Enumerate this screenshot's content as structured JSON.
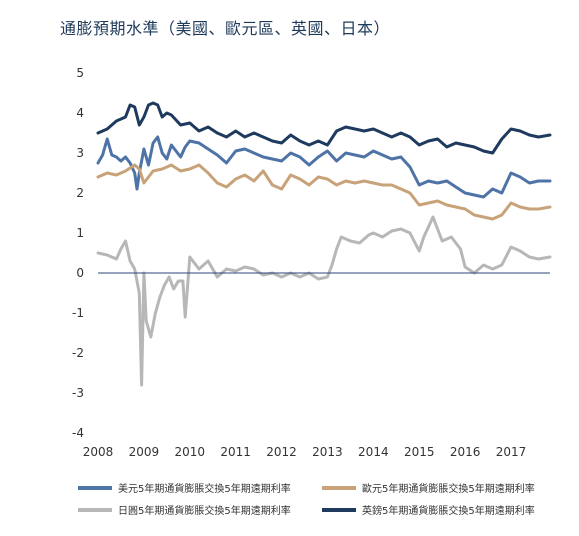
{
  "chart_data": {
    "type": "line",
    "title": "通膨預期水準（美國、歐元區、英國、日本）",
    "xlabel": "",
    "ylabel": "",
    "xlim": [
      2008.0,
      2017.85
    ],
    "ylim": [
      -4,
      5
    ],
    "grid": false,
    "legend_position": "bottom",
    "y_ticks": [
      "5",
      "4",
      "3",
      "2",
      "1",
      "0",
      "-1",
      "-2",
      "-3",
      "-4"
    ],
    "x_ticks": [
      "2008",
      "2009",
      "2010",
      "2011",
      "2012",
      "2013",
      "2014",
      "2015",
      "2016",
      "2017"
    ],
    "series": [
      {
        "name": "美元5年期通貨膨脹交換5年期遠期利率",
        "color": "#4e73a6",
        "x": [
          2008.0,
          2008.1,
          2008.2,
          2008.3,
          2008.4,
          2008.5,
          2008.6,
          2008.7,
          2008.8,
          2008.85,
          2008.9,
          2009.0,
          2009.1,
          2009.2,
          2009.3,
          2009.4,
          2009.5,
          2009.6,
          2009.7,
          2009.8,
          2009.9,
          2010.0,
          2010.2,
          2010.4,
          2010.6,
          2010.8,
          2011.0,
          2011.2,
          2011.4,
          2011.6,
          2011.8,
          2012.0,
          2012.2,
          2012.4,
          2012.6,
          2012.8,
          2013.0,
          2013.2,
          2013.4,
          2013.6,
          2013.8,
          2014.0,
          2014.2,
          2014.4,
          2014.6,
          2014.8,
          2015.0,
          2015.2,
          2015.4,
          2015.6,
          2015.8,
          2016.0,
          2016.2,
          2016.4,
          2016.6,
          2016.8,
          2017.0,
          2017.2,
          2017.4,
          2017.6,
          2017.85
        ],
        "y": [
          2.75,
          2.95,
          3.35,
          2.95,
          2.9,
          2.8,
          2.9,
          2.75,
          2.5,
          2.1,
          2.5,
          3.1,
          2.7,
          3.25,
          3.4,
          3.0,
          2.85,
          3.2,
          3.05,
          2.9,
          3.15,
          3.3,
          3.25,
          3.1,
          2.95,
          2.75,
          3.05,
          3.1,
          3.0,
          2.9,
          2.85,
          2.8,
          3.0,
          2.9,
          2.7,
          2.9,
          3.05,
          2.8,
          3.0,
          2.95,
          2.9,
          3.05,
          2.95,
          2.85,
          2.9,
          2.65,
          2.2,
          2.3,
          2.25,
          2.3,
          2.15,
          2.0,
          1.95,
          1.9,
          2.1,
          2.0,
          2.5,
          2.4,
          2.25,
          2.3,
          2.3
        ]
      },
      {
        "name": "歐元5年期通貨膨脹交換5年期遠期利率",
        "color": "#c8a278",
        "x": [
          2008.0,
          2008.2,
          2008.4,
          2008.6,
          2008.8,
          2008.9,
          2009.0,
          2009.2,
          2009.4,
          2009.6,
          2009.8,
          2010.0,
          2010.2,
          2010.4,
          2010.6,
          2010.8,
          2011.0,
          2011.2,
          2011.4,
          2011.6,
          2011.8,
          2012.0,
          2012.2,
          2012.4,
          2012.6,
          2012.8,
          2013.0,
          2013.2,
          2013.4,
          2013.6,
          2013.8,
          2014.0,
          2014.2,
          2014.4,
          2014.6,
          2014.8,
          2015.0,
          2015.2,
          2015.4,
          2015.6,
          2015.8,
          2016.0,
          2016.2,
          2016.4,
          2016.6,
          2016.8,
          2017.0,
          2017.2,
          2017.4,
          2017.6,
          2017.85
        ],
        "y": [
          2.4,
          2.5,
          2.45,
          2.55,
          2.7,
          2.6,
          2.25,
          2.55,
          2.6,
          2.7,
          2.55,
          2.6,
          2.7,
          2.5,
          2.25,
          2.15,
          2.35,
          2.45,
          2.3,
          2.55,
          2.2,
          2.1,
          2.45,
          2.35,
          2.2,
          2.4,
          2.35,
          2.2,
          2.3,
          2.25,
          2.3,
          2.25,
          2.2,
          2.2,
          2.1,
          2.0,
          1.7,
          1.75,
          1.8,
          1.7,
          1.65,
          1.6,
          1.45,
          1.4,
          1.35,
          1.45,
          1.75,
          1.65,
          1.6,
          1.6,
          1.65
        ]
      },
      {
        "name": "日圓5年期通貨膨脹交換5年期遠期利率",
        "color": "#b7b7b7",
        "x": [
          2008.0,
          2008.2,
          2008.4,
          2008.5,
          2008.6,
          2008.7,
          2008.8,
          2008.9,
          2008.95,
          2009.0,
          2009.05,
          2009.15,
          2009.25,
          2009.35,
          2009.45,
          2009.55,
          2009.65,
          2009.75,
          2009.85,
          2009.9,
          2010.0,
          2010.2,
          2010.4,
          2010.6,
          2010.8,
          2011.0,
          2011.2,
          2011.4,
          2011.6,
          2011.8,
          2012.0,
          2012.2,
          2012.4,
          2012.6,
          2012.8,
          2013.0,
          2013.1,
          2013.2,
          2013.3,
          2013.5,
          2013.7,
          2013.9,
          2014.0,
          2014.2,
          2014.4,
          2014.6,
          2014.8,
          2015.0,
          2015.1,
          2015.3,
          2015.5,
          2015.7,
          2015.9,
          2016.0,
          2016.2,
          2016.4,
          2016.6,
          2016.8,
          2017.0,
          2017.2,
          2017.4,
          2017.6,
          2017.85
        ],
        "y": [
          0.5,
          0.45,
          0.35,
          0.6,
          0.8,
          0.3,
          0.1,
          -0.5,
          -2.8,
          0.0,
          -1.2,
          -1.6,
          -1.0,
          -0.6,
          -0.3,
          -0.1,
          -0.4,
          -0.2,
          -0.2,
          -1.1,
          0.4,
          0.1,
          0.3,
          -0.1,
          0.1,
          0.05,
          0.15,
          0.1,
          -0.05,
          0.0,
          -0.1,
          0.0,
          -0.1,
          0.0,
          -0.15,
          -0.1,
          0.2,
          0.6,
          0.9,
          0.8,
          0.75,
          0.95,
          1.0,
          0.9,
          1.05,
          1.1,
          1.0,
          0.55,
          0.9,
          1.4,
          0.8,
          0.9,
          0.6,
          0.15,
          0.0,
          0.2,
          0.1,
          0.2,
          0.65,
          0.55,
          0.4,
          0.35,
          0.4
        ]
      },
      {
        "name": "英鎊5年期通貨膨脹交換5年期遠期利率",
        "color": "#1f3a5f",
        "x": [
          2008.0,
          2008.2,
          2008.4,
          2008.6,
          2008.7,
          2008.8,
          2008.9,
          2009.0,
          2009.1,
          2009.2,
          2009.3,
          2009.4,
          2009.5,
          2009.6,
          2009.8,
          2010.0,
          2010.2,
          2010.4,
          2010.6,
          2010.8,
          2011.0,
          2011.2,
          2011.4,
          2011.6,
          2011.8,
          2012.0,
          2012.2,
          2012.4,
          2012.6,
          2012.8,
          2013.0,
          2013.2,
          2013.4,
          2013.6,
          2013.8,
          2014.0,
          2014.2,
          2014.4,
          2014.6,
          2014.8,
          2015.0,
          2015.2,
          2015.4,
          2015.6,
          2015.8,
          2016.0,
          2016.2,
          2016.4,
          2016.6,
          2016.8,
          2017.0,
          2017.2,
          2017.4,
          2017.6,
          2017.85
        ],
        "y": [
          3.5,
          3.6,
          3.8,
          3.9,
          4.2,
          4.15,
          3.7,
          3.9,
          4.2,
          4.25,
          4.2,
          3.9,
          4.0,
          3.95,
          3.7,
          3.75,
          3.55,
          3.65,
          3.5,
          3.4,
          3.55,
          3.4,
          3.5,
          3.4,
          3.3,
          3.25,
          3.45,
          3.3,
          3.2,
          3.3,
          3.2,
          3.55,
          3.65,
          3.6,
          3.55,
          3.6,
          3.5,
          3.4,
          3.5,
          3.4,
          3.2,
          3.3,
          3.35,
          3.15,
          3.25,
          3.2,
          3.15,
          3.05,
          3.0,
          3.35,
          3.6,
          3.55,
          3.45,
          3.4,
          3.45
        ]
      }
    ]
  }
}
